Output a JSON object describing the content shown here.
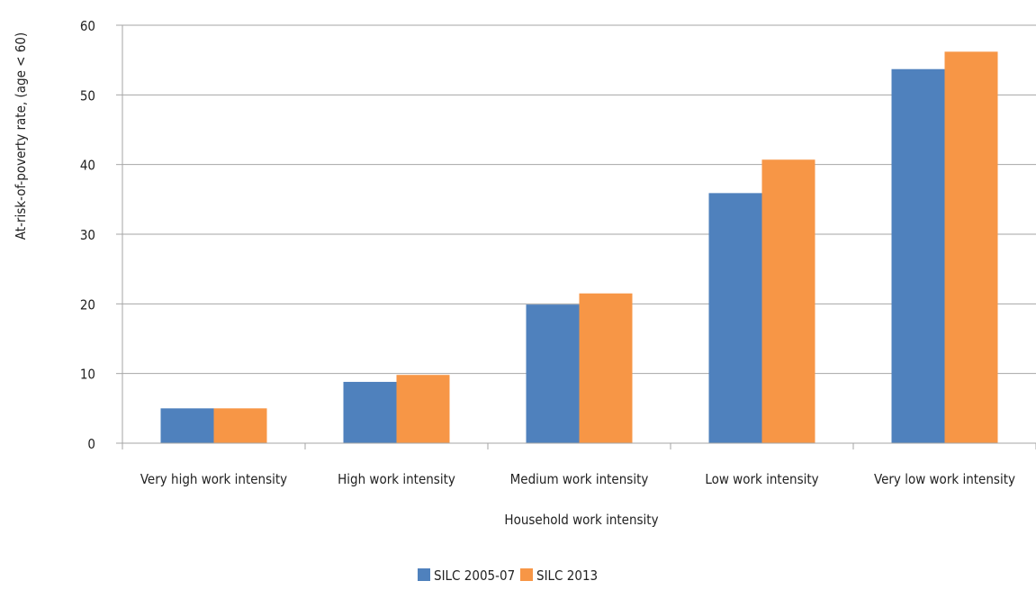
{
  "chart_data": {
    "type": "bar",
    "title": "",
    "xlabel": "Household work intensity",
    "ylabel": "At-risk-of-poverty rate, (age < 60)",
    "categories": [
      "Very high work intensity",
      "High work intensity",
      "Medium work intensity",
      "Low work intensity",
      "Very low work intensity"
    ],
    "series": [
      {
        "name": "SILC 2005-07",
        "color": "#4f81bd",
        "values": [
          5,
          8.8,
          19.9,
          35.9,
          53.7
        ]
      },
      {
        "name": "SILC 2013",
        "color": "#f79646",
        "values": [
          5,
          9.8,
          21.5,
          40.7,
          56.2
        ]
      }
    ],
    "ylim": [
      0,
      60
    ],
    "yticks": [
      0,
      10,
      20,
      30,
      40,
      50,
      60
    ],
    "grid": true,
    "legend": "bottom-center"
  }
}
